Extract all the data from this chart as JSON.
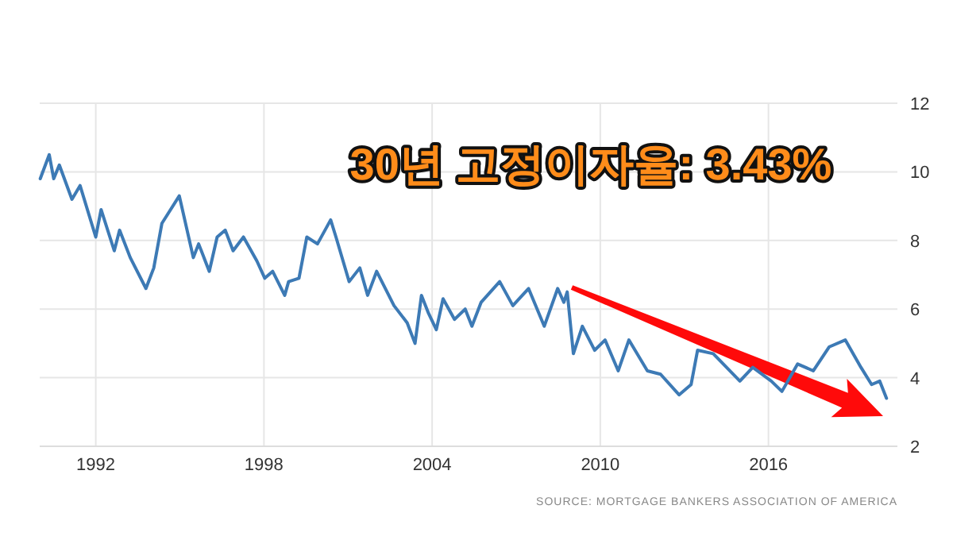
{
  "chart_data": {
    "type": "line",
    "title": "30년 고정이자율: 3.43%",
    "annotations": [
      "SOURCE: MORTGAGE BANKERS ASSOCIATION OF AMERICA"
    ],
    "xlim": [
      1990,
      2020.6
    ],
    "xticks": [
      1992,
      1998,
      2004,
      2010,
      2016
    ],
    "ylim": [
      2,
      12
    ],
    "yticks": [
      2,
      4,
      6,
      8,
      10,
      12
    ],
    "grid": true,
    "series": [
      {
        "color": "#3d7ab5",
        "x": [
          1990.02,
          1990.34,
          1990.5,
          1990.7,
          1991.15,
          1991.44,
          1992.0,
          1992.19,
          1992.66,
          1992.85,
          1993.23,
          1993.79,
          1994.07,
          1994.36,
          1994.98,
          1995.48,
          1995.67,
          1996.05,
          1996.33,
          1996.62,
          1996.9,
          1997.27,
          1997.75,
          1998.03,
          1998.31,
          1998.74,
          1998.88,
          1999.25,
          1999.53,
          1999.91,
          2000.38,
          2000.57,
          2001.04,
          2001.42,
          2001.7,
          2002.02,
          2002.64,
          2003.11,
          2003.39,
          2003.62,
          2003.86,
          2004.15,
          2004.39,
          2004.8,
          2005.18,
          2005.42,
          2005.75,
          2006.41,
          2006.88,
          2007.44,
          2008.0,
          2008.48,
          2008.7,
          2008.82,
          2009.04,
          2009.36,
          2009.8,
          2010.17,
          2010.64,
          2011.02,
          2011.68,
          2012.15,
          2012.81,
          2013.24,
          2013.47,
          2014.03,
          2014.98,
          2015.44,
          2016.1,
          2016.48,
          2017.04,
          2017.6,
          2018.17,
          2018.74,
          2019.3,
          2019.68,
          2019.97,
          2020.21
        ],
        "values": [
          9.8,
          10.5,
          9.8,
          10.2,
          9.2,
          9.6,
          8.1,
          8.9,
          7.7,
          8.3,
          7.5,
          6.6,
          7.2,
          8.5,
          9.3,
          7.5,
          7.9,
          7.1,
          8.1,
          8.3,
          7.7,
          8.1,
          7.4,
          6.9,
          7.1,
          6.4,
          6.8,
          6.9,
          8.1,
          7.9,
          8.6,
          8.1,
          6.8,
          7.2,
          6.4,
          7.1,
          6.1,
          5.6,
          5.0,
          6.4,
          5.9,
          5.4,
          6.3,
          5.7,
          6.0,
          5.5,
          6.2,
          6.8,
          6.1,
          6.6,
          5.5,
          6.6,
          6.2,
          6.5,
          4.7,
          5.5,
          4.8,
          5.1,
          4.2,
          5.1,
          4.2,
          4.1,
          3.5,
          3.8,
          4.8,
          4.7,
          3.9,
          4.3,
          3.9,
          3.6,
          4.4,
          4.2,
          4.9,
          5.1,
          4.3,
          3.8,
          3.9,
          3.4
        ]
      }
    ]
  }
}
